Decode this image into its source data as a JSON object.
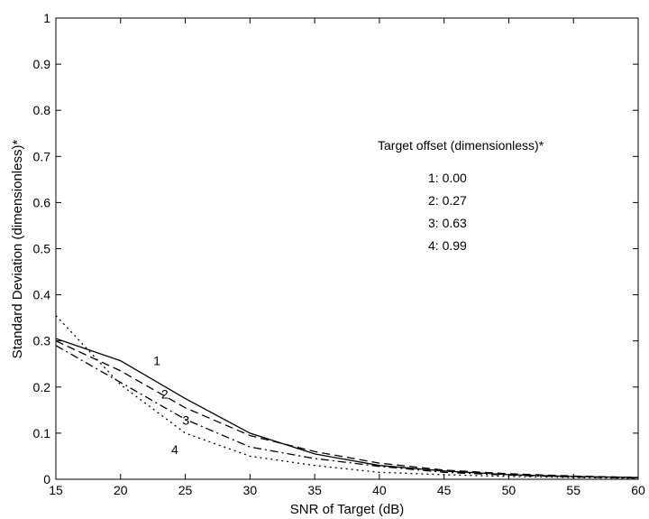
{
  "chart_data": {
    "type": "line",
    "xlabel": "SNR of Target (dB)",
    "ylabel": "Standard Deviation (dimensionless)*",
    "xlim": [
      15,
      60
    ],
    "ylim": [
      0,
      1
    ],
    "x_ticks": [
      "15",
      "20",
      "25",
      "30",
      "35",
      "40",
      "45",
      "50",
      "55",
      "60"
    ],
    "y_ticks": [
      "0",
      "0.1",
      "0.2",
      "0.3",
      "0.4",
      "0.5",
      "0.6",
      "0.7",
      "0.8",
      "0.9",
      "1"
    ],
    "grid": false,
    "legend": {
      "title": "Target offset (dimensionless)*",
      "placement": "top-right",
      "entries": [
        "1:  0.00",
        "2:  0.27",
        "3:  0.63",
        "4:  0.99"
      ]
    },
    "series": [
      {
        "label": "1",
        "style": "solid",
        "x": [
          15,
          20,
          25,
          30,
          35,
          40,
          45,
          50,
          55,
          60
        ],
        "y": [
          0.305,
          0.257,
          0.175,
          0.1,
          0.055,
          0.03,
          0.018,
          0.01,
          0.006,
          0.004
        ]
      },
      {
        "label": "2",
        "style": "dashed",
        "x": [
          15,
          20,
          25,
          30,
          35,
          40,
          45,
          50,
          55,
          60
        ],
        "y": [
          0.3,
          0.235,
          0.155,
          0.095,
          0.06,
          0.035,
          0.02,
          0.012,
          0.007,
          0.004
        ]
      },
      {
        "label": "3",
        "style": "dashdot",
        "x": [
          15,
          20,
          25,
          30,
          35,
          40,
          45,
          50,
          55,
          60
        ],
        "y": [
          0.29,
          0.21,
          0.13,
          0.07,
          0.045,
          0.028,
          0.015,
          0.009,
          0.005,
          0.003
        ]
      },
      {
        "label": "4",
        "style": "dotted",
        "x": [
          15,
          20,
          25,
          30,
          35,
          40,
          45,
          50,
          55,
          60
        ],
        "y": [
          0.355,
          0.205,
          0.1,
          0.05,
          0.03,
          0.015,
          0.01,
          0.006,
          0.004,
          0.002
        ]
      }
    ]
  }
}
